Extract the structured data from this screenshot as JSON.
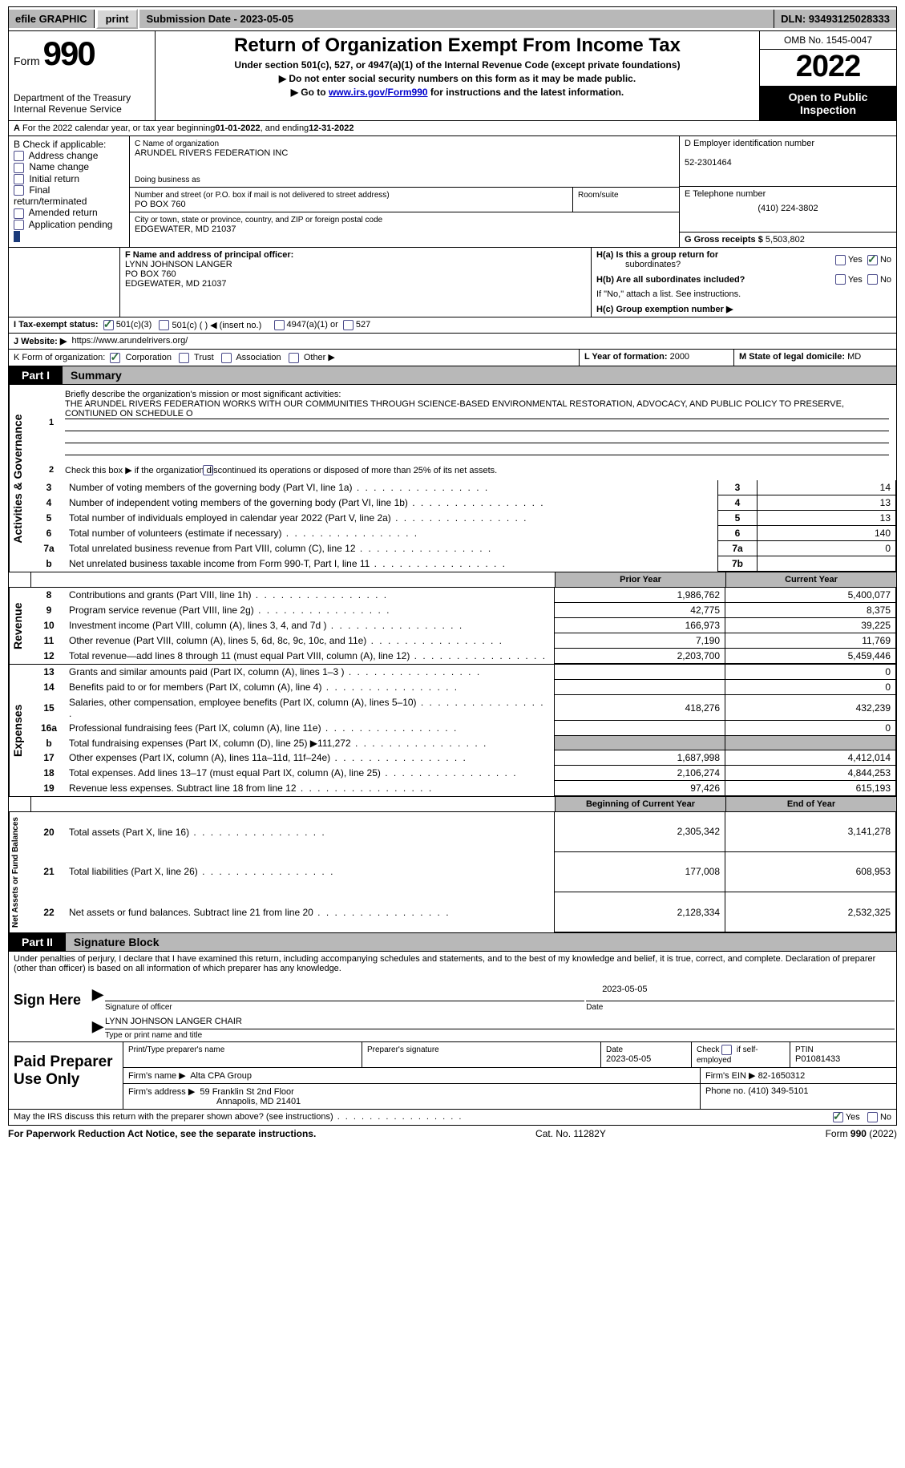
{
  "topbar": {
    "efile": "efile GRAPHIC",
    "print": "print",
    "submission": "Submission Date - 2023-05-05",
    "dln": "DLN: 93493125028333"
  },
  "header": {
    "form": "Form",
    "formno": "990",
    "dept1": "Department of the Treasury",
    "dept2": "Internal Revenue Service",
    "title": "Return of Organization Exempt From Income Tax",
    "sub1": "Under section 501(c), 527, or 4947(a)(1) of the Internal Revenue Code (except private foundations)",
    "sub2_pre": "▶ Do not enter social security numbers on this form as it may be made public.",
    "sub3_pre": "▶ Go to ",
    "sub3_link": "www.irs.gov/Form990",
    "sub3_post": " for instructions and the latest information.",
    "omb": "OMB No. 1545-0047",
    "year": "2022",
    "open1": "Open to Public",
    "open2": "Inspection"
  },
  "sectionA": {
    "label": "A",
    "text_pre": "For the 2022 calendar year, or tax year beginning ",
    "begin": "01-01-2022",
    "mid": " , and ending ",
    "end": "12-31-2022"
  },
  "sectionB": {
    "label": "B Check if applicable:",
    "items": [
      "Address change",
      "Name change",
      "Initial return",
      "Final return/terminated",
      "Amended return",
      "Application pending"
    ]
  },
  "sectionC": {
    "clabel": "C Name of organization",
    "cval": "ARUNDEL RIVERS FEDERATION INC",
    "dba_label": "Doing business as",
    "dba_val": "",
    "street_label": "Number and street (or P.O. box if mail is not delivered to street address)",
    "room_label": "Room/suite",
    "street_val": "PO BOX 760",
    "city_label": "City or town, state or province, country, and ZIP or foreign postal code",
    "city_val": "EDGEWATER, MD  21037"
  },
  "sectionD": {
    "label": "D Employer identification number",
    "val": "52-2301464"
  },
  "sectionE": {
    "label": "E Telephone number",
    "val": "(410) 224-3802"
  },
  "sectionG": {
    "label": "G Gross receipts $",
    "val": "5,503,802"
  },
  "sectionF": {
    "label": "F  Name and address of principal officer:",
    "l1": "LYNN JOHNSON LANGER",
    "l2": "PO BOX 760",
    "l3": "EDGEWATER, MD  21037"
  },
  "sectionH": {
    "a": "H(a)  Is this a group return for",
    "a2": "subordinates?",
    "b": "H(b)  Are all subordinates included?",
    "b2": "If \"No,\" attach a list. See instructions.",
    "c": "H(c)  Group exemption number ▶",
    "yes": "Yes",
    "no": "No"
  },
  "sectionI": {
    "label": "I   Tax-exempt status:",
    "o1": "501(c)(3)",
    "o2": "501(c) (  ) ◀ (insert no.)",
    "o3": "4947(a)(1) or",
    "o4": "527"
  },
  "sectionJ": {
    "label": "J   Website: ▶",
    "val": "https://www.arundelrivers.org/"
  },
  "sectionK": {
    "label": "K Form of organization:",
    "o1": "Corporation",
    "o2": "Trust",
    "o3": "Association",
    "o4": "Other ▶"
  },
  "sectionL": {
    "label": "L Year of formation:",
    "val": "2000"
  },
  "sectionM": {
    "label": "M State of legal domicile:",
    "val": "MD"
  },
  "parts": {
    "p1": "Part I",
    "p1t": "Summary",
    "p2": "Part II",
    "p2t": "Signature Block"
  },
  "summary": {
    "v1": "Activities & Governance",
    "v2": "Revenue",
    "v3": "Expenses",
    "v4": "Net Assets or Fund Balances",
    "l1a": "Briefly describe the organization's mission or most significant activities:",
    "l1b": "THE ARUNDEL RIVERS FEDERATION WORKS WITH OUR COMMUNITIES THROUGH SCIENCE-BASED ENVIRONMENTAL RESTORATION, ADVOCACY, AND PUBLIC POLICY TO PRESERVE, CONTIUNED ON SCHEDULE O",
    "l2": "Check this box ▶      if the organization discontinued its operations or disposed of more than 25% of its net assets.",
    "hdr_prior": "Prior Year",
    "hdr_current": "Current Year",
    "hdr_begin": "Beginning of Current Year",
    "hdr_end": "End of Year",
    "rows_ag": [
      {
        "n": "3",
        "t": "Number of voting members of the governing body (Part VI, line 1a)",
        "box": "3",
        "v": "14"
      },
      {
        "n": "4",
        "t": "Number of independent voting members of the governing body (Part VI, line 1b)",
        "box": "4",
        "v": "13"
      },
      {
        "n": "5",
        "t": "Total number of individuals employed in calendar year 2022 (Part V, line 2a)",
        "box": "5",
        "v": "13"
      },
      {
        "n": "6",
        "t": "Total number of volunteers (estimate if necessary)",
        "box": "6",
        "v": "140"
      },
      {
        "n": "7a",
        "t": "Total unrelated business revenue from Part VIII, column (C), line 12",
        "box": "7a",
        "v": "0"
      },
      {
        "n": "b",
        "t": "Net unrelated business taxable income from Form 990-T, Part I, line 11",
        "box": "7b",
        "v": ""
      }
    ],
    "rows_rev": [
      {
        "n": "8",
        "t": "Contributions and grants (Part VIII, line 1h)",
        "p": "1,986,762",
        "c": "5,400,077"
      },
      {
        "n": "9",
        "t": "Program service revenue (Part VIII, line 2g)",
        "p": "42,775",
        "c": "8,375"
      },
      {
        "n": "10",
        "t": "Investment income (Part VIII, column (A), lines 3, 4, and 7d )",
        "p": "166,973",
        "c": "39,225"
      },
      {
        "n": "11",
        "t": "Other revenue (Part VIII, column (A), lines 5, 6d, 8c, 9c, 10c, and 11e)",
        "p": "7,190",
        "c": "11,769"
      },
      {
        "n": "12",
        "t": "Total revenue—add lines 8 through 11 (must equal Part VIII, column (A), line 12)",
        "p": "2,203,700",
        "c": "5,459,446"
      }
    ],
    "rows_exp": [
      {
        "n": "13",
        "t": "Grants and similar amounts paid (Part IX, column (A), lines 1–3 )",
        "p": "",
        "c": "0"
      },
      {
        "n": "14",
        "t": "Benefits paid to or for members (Part IX, column (A), line 4)",
        "p": "",
        "c": "0"
      },
      {
        "n": "15",
        "t": "Salaries, other compensation, employee benefits (Part IX, column (A), lines 5–10)",
        "p": "418,276",
        "c": "432,239"
      },
      {
        "n": "16a",
        "t": "Professional fundraising fees (Part IX, column (A), line 11e)",
        "p": "",
        "c": "0"
      },
      {
        "n": "b",
        "t": "Total fundraising expenses (Part IX, column (D), line 25) ▶111,272",
        "p": "shaded",
        "c": "shaded"
      },
      {
        "n": "17",
        "t": "Other expenses (Part IX, column (A), lines 11a–11d, 11f–24e)",
        "p": "1,687,998",
        "c": "4,412,014"
      },
      {
        "n": "18",
        "t": "Total expenses. Add lines 13–17 (must equal Part IX, column (A), line 25)",
        "p": "2,106,274",
        "c": "4,844,253"
      },
      {
        "n": "19",
        "t": "Revenue less expenses. Subtract line 18 from line 12",
        "p": "97,426",
        "c": "615,193"
      }
    ],
    "rows_na": [
      {
        "n": "20",
        "t": "Total assets (Part X, line 16)",
        "p": "2,305,342",
        "c": "3,141,278"
      },
      {
        "n": "21",
        "t": "Total liabilities (Part X, line 26)",
        "p": "177,008",
        "c": "608,953"
      },
      {
        "n": "22",
        "t": "Net assets or fund balances. Subtract line 21 from line 20",
        "p": "2,128,334",
        "c": "2,532,325"
      }
    ]
  },
  "sigblock": {
    "decl": "Under penalties of perjury, I declare that I have examined this return, including accompanying schedules and statements, and to the best of my knowledge and belief, it is true, correct, and complete. Declaration of preparer (other than officer) is based on all information of which preparer has any knowledge.",
    "sign_here": "Sign Here",
    "sig_off": "Signature of officer",
    "sig_date": "2023-05-05",
    "name_title": "LYNN JOHNSON LANGER  CHAIR",
    "name_label": "Type or print name and title",
    "paid": "Paid Preparer Use Only",
    "pp_name_l": "Print/Type preparer's name",
    "pp_sig_l": "Preparer's signature",
    "pp_date_l": "Date",
    "pp_date": "2023-05-05",
    "pp_check_l": "Check        if self-employed",
    "pp_ptin_l": "PTIN",
    "pp_ptin": "P01081433",
    "firm_name_l": "Firm's name    ▶",
    "firm_name": "Alta CPA Group",
    "firm_ein_l": "Firm's EIN ▶",
    "firm_ein": "82-1650312",
    "firm_addr_l": "Firm's address ▶",
    "firm_addr1": "59 Franklin St 2nd Floor",
    "firm_addr2": "Annapolis, MD  21401",
    "phone_l": "Phone no.",
    "phone": "(410) 349-5101",
    "discuss": "May the IRS discuss this return with the preparer shown above? (see instructions)"
  },
  "footer": {
    "left": "For Paperwork Reduction Act Notice, see the separate instructions.",
    "mid": "Cat. No. 11282Y",
    "right": "Form 990 (2022)"
  }
}
